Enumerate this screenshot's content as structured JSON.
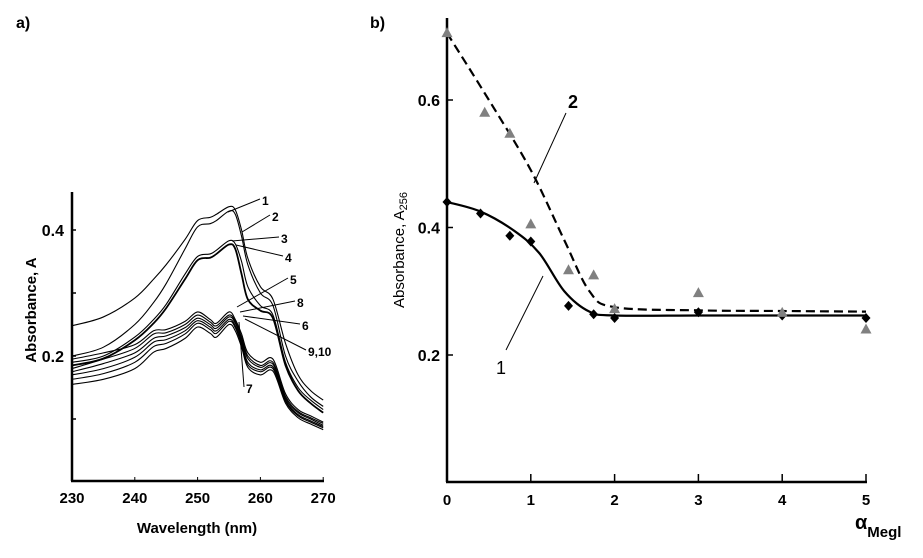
{
  "chart_data": [
    {
      "panel": "a)",
      "type": "line",
      "xlabel": "Wavelength (nm)",
      "ylabel": "Absorbance, A",
      "xlim": [
        230,
        270
      ],
      "ylim": [
        0.0,
        0.455
      ],
      "xticks": [
        230,
        240,
        250,
        260,
        270
      ],
      "yticks": [
        {
          "v": 0.1,
          "label": ""
        },
        {
          "v": 0.2,
          "label": "0.2"
        },
        {
          "v": 0.3,
          "label": ""
        },
        {
          "v": 0.4,
          "label": "0.4"
        }
      ],
      "x": [
        230,
        235,
        240,
        243,
        245,
        248,
        250,
        252,
        253,
        255,
        256,
        257,
        258,
        260,
        262,
        264,
        266,
        268,
        270
      ],
      "series": [
        {
          "name": "1",
          "values": [
            0.248,
            0.262,
            0.292,
            0.322,
            0.345,
            0.385,
            0.415,
            0.42,
            0.425,
            0.437,
            0.432,
            0.4,
            0.355,
            0.31,
            0.29,
            0.22,
            0.17,
            0.145,
            0.13
          ]
        },
        {
          "name": "2",
          "values": [
            0.2,
            0.214,
            0.25,
            0.285,
            0.315,
            0.37,
            0.405,
            0.41,
            0.415,
            0.43,
            0.425,
            0.39,
            0.345,
            0.3,
            0.28,
            0.2,
            0.16,
            0.135,
            0.12
          ]
        },
        {
          "name": "3",
          "values": [
            0.19,
            0.2,
            0.23,
            0.258,
            0.282,
            0.33,
            0.358,
            0.362,
            0.368,
            0.383,
            0.378,
            0.35,
            0.31,
            0.28,
            0.265,
            0.19,
            0.15,
            0.13,
            0.115
          ]
        },
        {
          "name": "4",
          "values": [
            0.185,
            0.196,
            0.225,
            0.252,
            0.276,
            0.322,
            0.352,
            0.356,
            0.362,
            0.377,
            0.37,
            0.33,
            0.29,
            0.272,
            0.26,
            0.185,
            0.145,
            0.125,
            0.11
          ]
        },
        {
          "name": "5",
          "values": [
            0.195,
            0.205,
            0.218,
            0.24,
            0.242,
            0.255,
            0.27,
            0.258,
            0.252,
            0.27,
            0.258,
            0.235,
            0.205,
            0.19,
            0.195,
            0.14,
            0.115,
            0.105,
            0.095
          ]
        },
        {
          "name": "8",
          "values": [
            0.18,
            0.195,
            0.212,
            0.235,
            0.237,
            0.25,
            0.265,
            0.254,
            0.248,
            0.265,
            0.255,
            0.23,
            0.2,
            0.185,
            0.19,
            0.136,
            0.112,
            0.102,
            0.093
          ]
        },
        {
          "name": "6",
          "values": [
            0.175,
            0.188,
            0.205,
            0.228,
            0.232,
            0.245,
            0.26,
            0.25,
            0.244,
            0.262,
            0.252,
            0.226,
            0.196,
            0.182,
            0.187,
            0.133,
            0.11,
            0.1,
            0.09
          ]
        },
        {
          "name": "9,10",
          "values": [
            0.17,
            0.18,
            0.198,
            0.222,
            0.226,
            0.24,
            0.256,
            0.246,
            0.24,
            0.258,
            0.248,
            0.222,
            0.19,
            0.178,
            0.183,
            0.13,
            0.107,
            0.097,
            0.088
          ]
        },
        {
          "name": "9,10",
          "values": [
            0.163,
            0.172,
            0.19,
            0.215,
            0.22,
            0.235,
            0.252,
            0.242,
            0.236,
            0.255,
            0.245,
            0.218,
            0.186,
            0.175,
            0.18,
            0.128,
            0.105,
            0.095,
            0.086
          ]
        },
        {
          "name": "7",
          "values": [
            0.155,
            0.163,
            0.18,
            0.206,
            0.212,
            0.228,
            0.246,
            0.236,
            0.23,
            0.25,
            0.24,
            0.214,
            0.182,
            0.17,
            0.176,
            0.125,
            0.102,
            0.092,
            0.083
          ]
        }
      ]
    },
    {
      "panel": "b)",
      "type": "scatter",
      "xlabel": "α",
      "xlabel_sub": "Megl",
      "ylabel": "Absorbance, A",
      "ylabel_sub": "256",
      "xlim": [
        0,
        5
      ],
      "ylim": [
        0,
        0.72
      ],
      "xticks": [
        0,
        1,
        2,
        3,
        4,
        5
      ],
      "yticks": [
        0.2,
        0.4,
        0.6
      ],
      "series": [
        {
          "name": "1",
          "marker": "diamond",
          "color": "#000000",
          "line": "solid",
          "x": [
            0,
            0.4,
            0.75,
            1,
            1.45,
            1.75,
            2,
            3,
            4,
            5
          ],
          "values": [
            0.44,
            0.422,
            0.387,
            0.378,
            0.277,
            0.264,
            0.258,
            0.267,
            0.262,
            0.258
          ],
          "fit_x": [
            0,
            0.4,
            0.8,
            1.1,
            1.4,
            1.7,
            2,
            3,
            4,
            5
          ],
          "fit": [
            0.44,
            0.425,
            0.395,
            0.36,
            0.3,
            0.268,
            0.262,
            0.262,
            0.262,
            0.262
          ]
        },
        {
          "name": "2",
          "marker": "triangle",
          "color": "#808080",
          "line": "dashed",
          "x": [
            0,
            0.45,
            0.75,
            1,
            1.45,
            1.75,
            2,
            3,
            4,
            5
          ],
          "values": [
            0.705,
            0.58,
            0.547,
            0.405,
            0.333,
            0.325,
            0.272,
            0.297,
            0.266,
            0.24
          ],
          "fit_x": [
            0,
            0.5,
            1,
            1.4,
            1.7,
            2,
            3,
            4,
            5
          ],
          "fit": [
            0.705,
            0.6,
            0.49,
            0.38,
            0.3,
            0.275,
            0.27,
            0.269,
            0.268
          ]
        }
      ]
    }
  ]
}
